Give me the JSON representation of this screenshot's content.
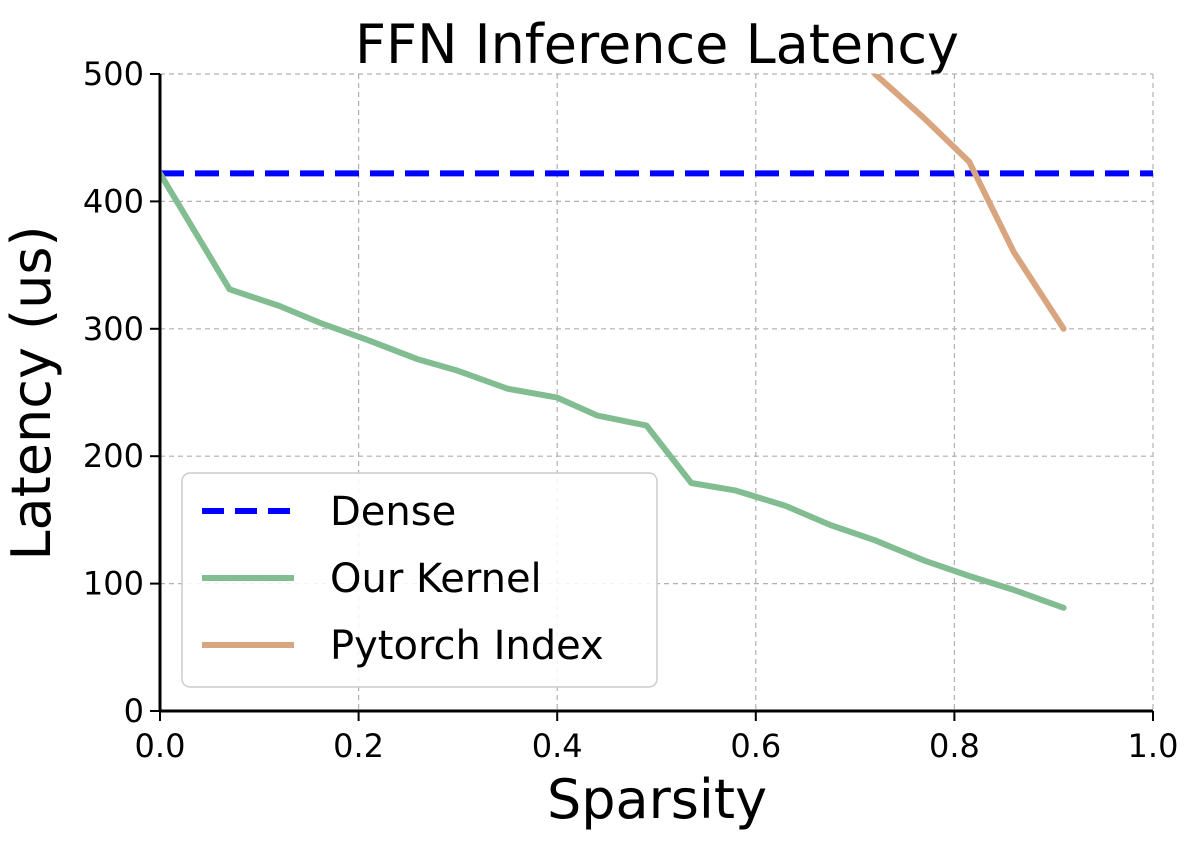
{
  "chart_data": {
    "type": "line",
    "title": "FFN Inference Latency",
    "xlabel": "Sparsity",
    "ylabel": "Latency (us)",
    "xlim": [
      0.0,
      1.0
    ],
    "ylim": [
      0,
      500
    ],
    "xticks": [
      "0.0",
      "0.2",
      "0.4",
      "0.6",
      "0.8",
      "1.0"
    ],
    "yticks": [
      "0",
      "100",
      "200",
      "300",
      "400",
      "500"
    ],
    "grid": true,
    "legend_position": "lower-left",
    "series": [
      {
        "name": "Dense",
        "color": "#0000ff",
        "style": "dashed",
        "x": [
          0.0,
          1.0
        ],
        "y": [
          422,
          422
        ]
      },
      {
        "name": "Our Kernel",
        "color": "#82bd92",
        "style": "solid",
        "x": [
          0.0,
          0.07,
          0.12,
          0.16,
          0.21,
          0.26,
          0.3,
          0.35,
          0.4,
          0.44,
          0.49,
          0.535,
          0.58,
          0.63,
          0.675,
          0.72,
          0.77,
          0.815,
          0.86,
          0.91
        ],
        "y": [
          422,
          331,
          318,
          305,
          291,
          276,
          267,
          253,
          246,
          232,
          224,
          179,
          173,
          161,
          146,
          134,
          118,
          106,
          95,
          81
        ]
      },
      {
        "name": "Pytorch Index",
        "color": "#d9a57e",
        "style": "solid",
        "x": [
          0.72,
          0.77,
          0.815,
          0.86,
          0.91
        ],
        "y": [
          500,
          465,
          431,
          360,
          300
        ]
      }
    ]
  }
}
